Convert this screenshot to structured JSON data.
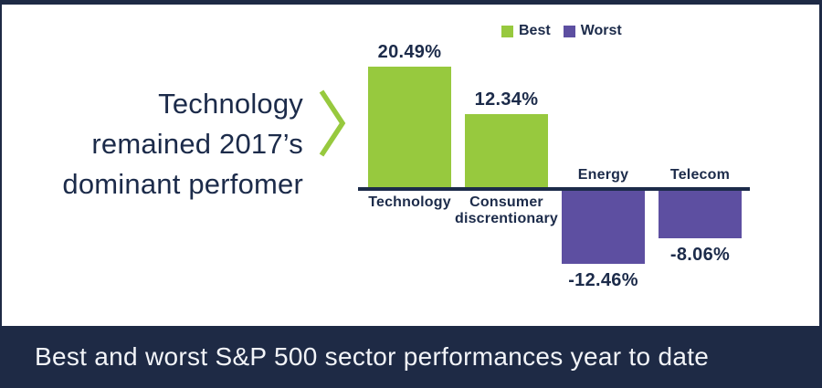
{
  "headline": {
    "lines": [
      "Technology",
      "remained 2017’s",
      "dominant perfomer"
    ],
    "color": "#1C2B4A"
  },
  "chevron": {
    "color": "#97C93E"
  },
  "legend": {
    "items": [
      {
        "label": "Best",
        "color": "#97C93E"
      },
      {
        "label": "Worst",
        "color": "#5D4FA1"
      }
    ]
  },
  "chart_data": {
    "type": "bar",
    "title": "Best and worst S&P 500 sector performances year to date",
    "categories": [
      "Technology",
      "Consumer discrentionary",
      "Energy",
      "Telecom"
    ],
    "category_label_lines": [
      [
        "Technology"
      ],
      [
        "Consumer",
        "discrentionary"
      ],
      [
        "Energy"
      ],
      [
        "Telecom"
      ]
    ],
    "values": [
      20.49,
      12.34,
      -12.46,
      -8.06
    ],
    "value_labels": [
      "20.49%",
      "12.34%",
      "-12.46%",
      "-8.06%"
    ],
    "series_assignment": [
      "Best",
      "Best",
      "Worst",
      "Worst"
    ],
    "series_colors": {
      "Best": "#97C93E",
      "Worst": "#5D4FA1"
    },
    "legend_entries": [
      "Best",
      "Worst"
    ],
    "legend_position": "top-center",
    "baseline": 0,
    "grid": false,
    "xlabel": "",
    "ylabel": "",
    "axis_color": "#1C2B4A"
  },
  "caption": {
    "text": "Best and worst S&P 500 sector performances year to date",
    "bg": "#1E2A45",
    "color": "#F2F4F8"
  }
}
